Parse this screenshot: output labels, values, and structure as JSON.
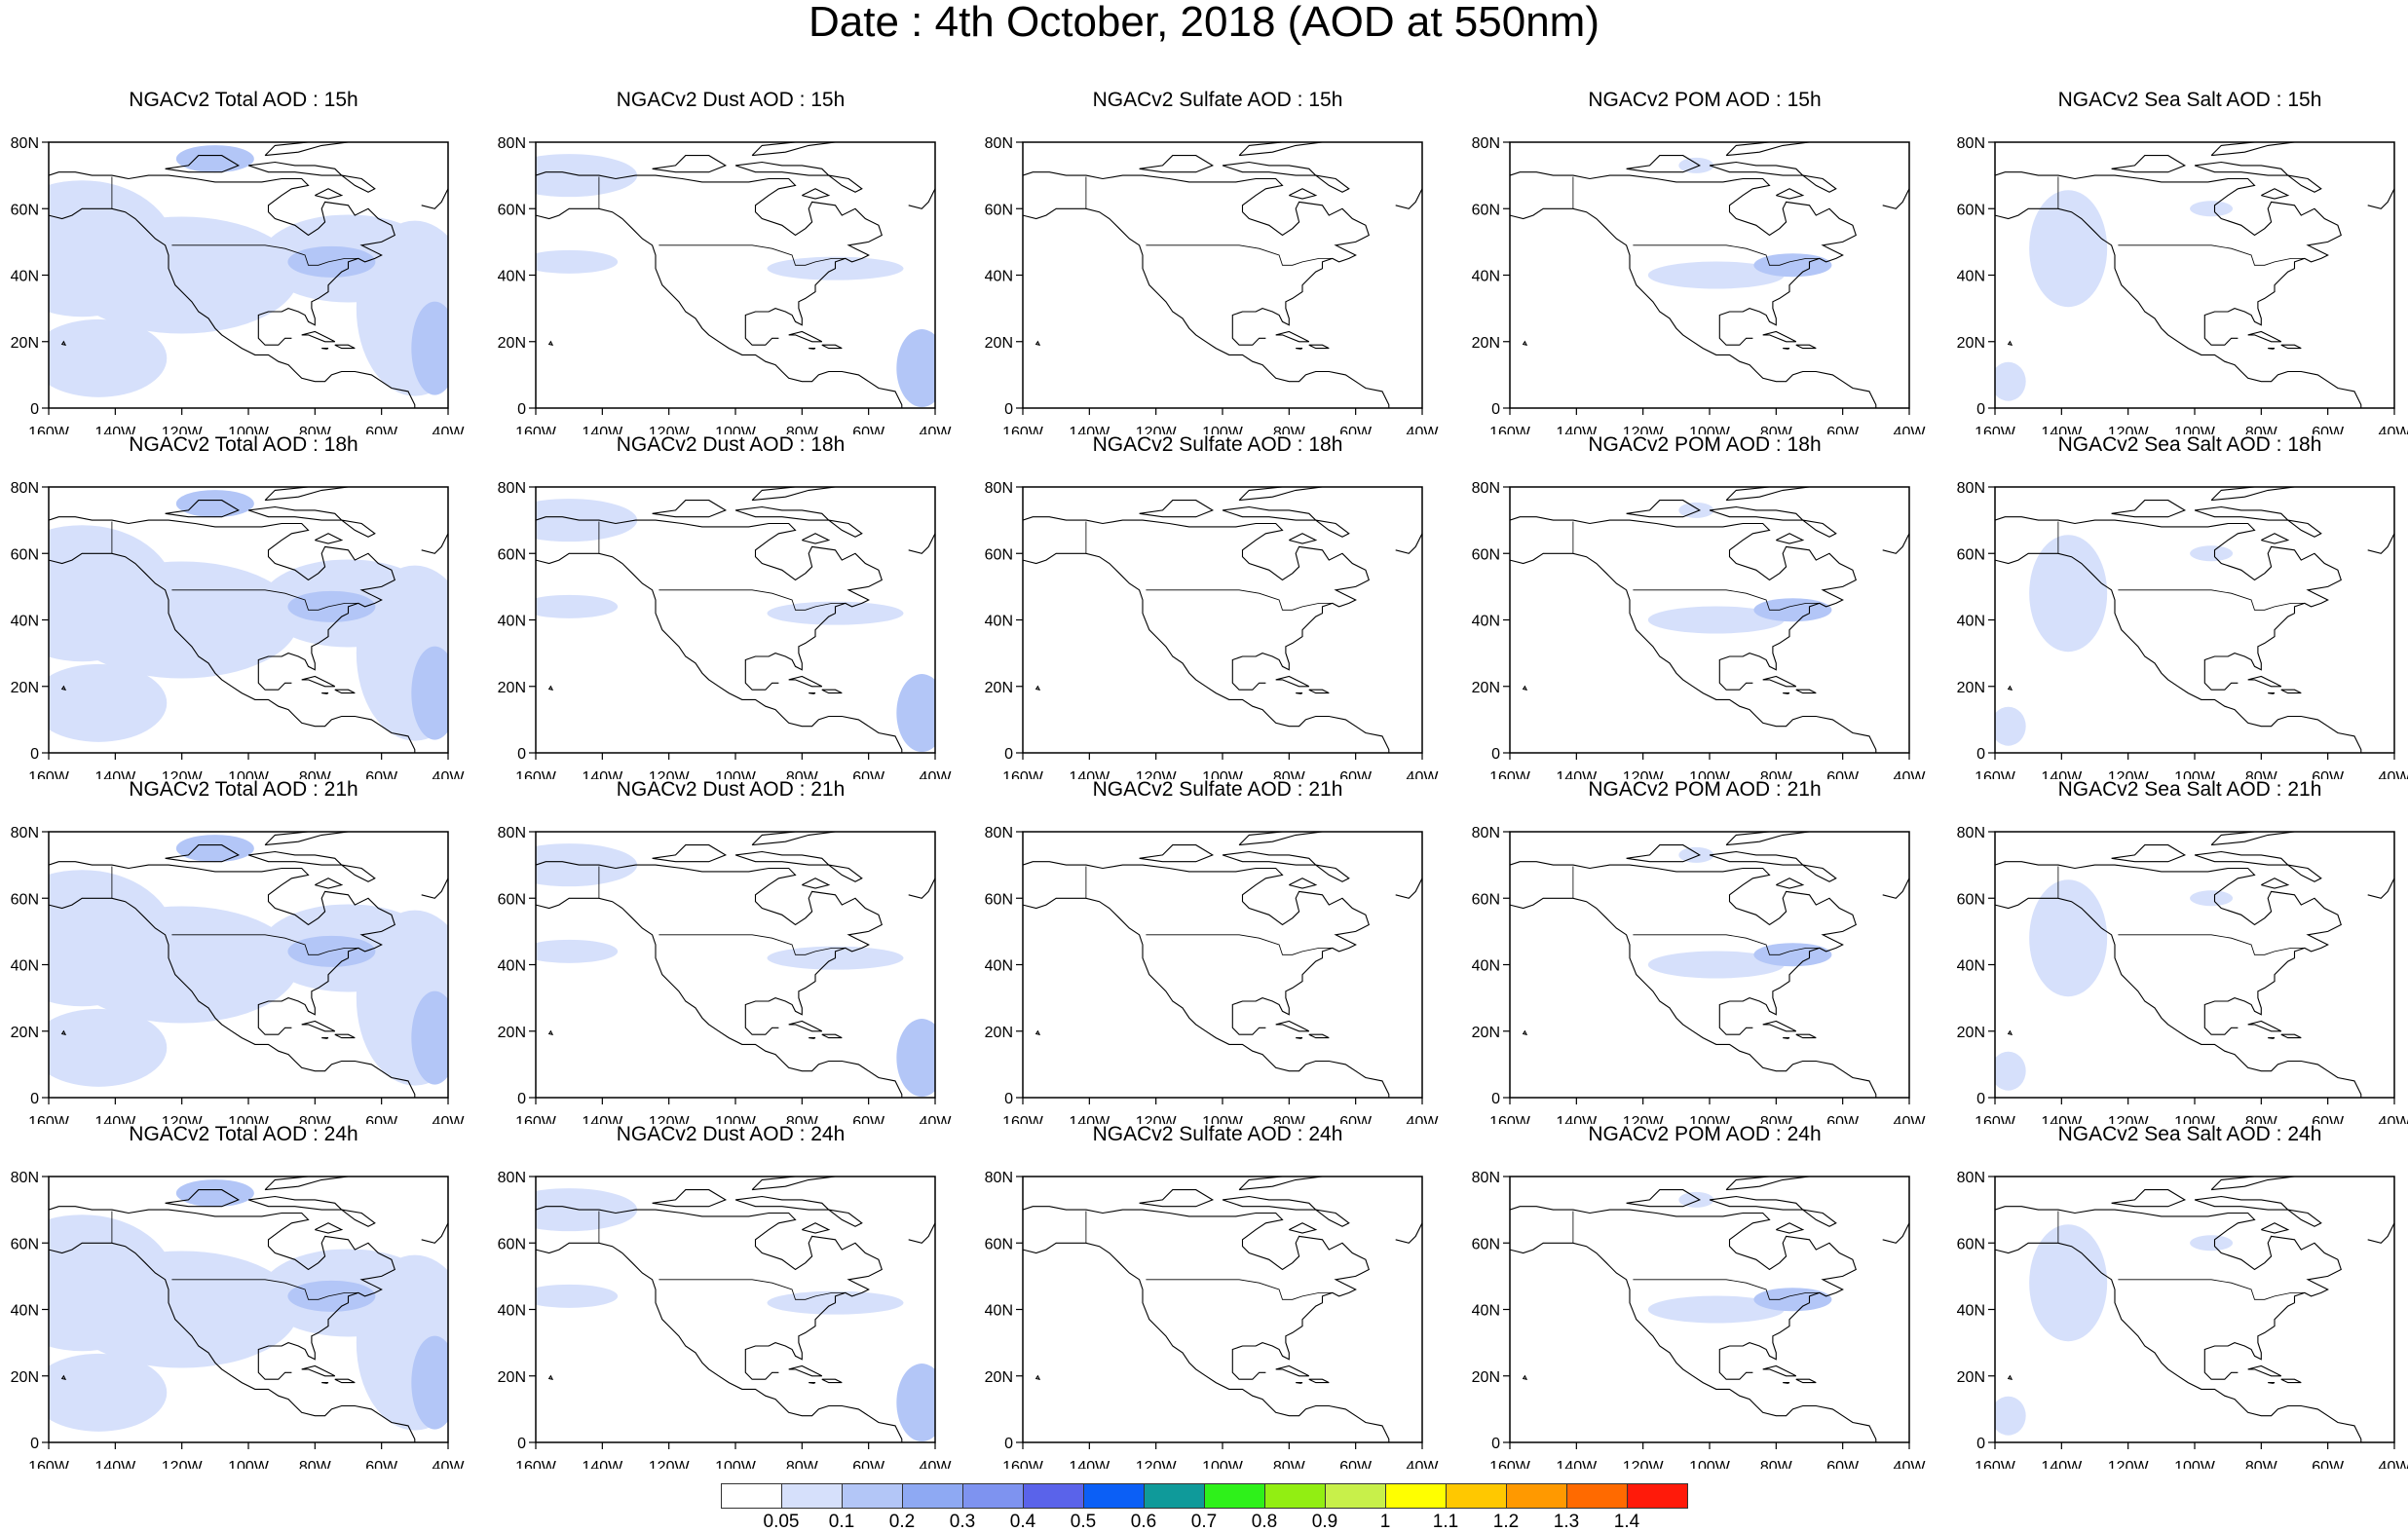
{
  "title": "Date : 4th October, 2018 (AOD at 550nm)",
  "axes": {
    "lat_ticks": [
      "80N",
      "60N",
      "40N",
      "20N",
      "0"
    ],
    "lon_ticks": [
      "160W",
      "140W",
      "120W",
      "100W",
      "80W",
      "60W",
      "40W"
    ]
  },
  "fill_color_blue": "#5b7ff0",
  "rows": [
    [
      "NGACv2 Total AOD : 15h",
      "NGACv2 Dust AOD : 15h",
      "NGACv2 Sulfate AOD : 15h",
      "NGACv2 POM AOD : 15h",
      "NGACv2 Sea Salt AOD : 15h"
    ],
    [
      "NGACv2 Total AOD : 18h",
      "NGACv2 Dust AOD : 18h",
      "NGACv2 Sulfate AOD : 18h",
      "NGACv2 POM AOD : 18h",
      "NGACv2 Sea Salt AOD : 18h"
    ],
    [
      "NGACv2 Total AOD : 21h",
      "NGACv2 Dust AOD : 21h",
      "NGACv2 Sulfate AOD : 21h",
      "NGACv2 POM AOD : 21h",
      "NGACv2 Sea Salt AOD : 21h"
    ],
    [
      "NGACv2 Total AOD : 24h",
      "NGACv2 Dust AOD : 24h",
      "NGACv2 Sulfate AOD : 24h",
      "NGACv2 POM AOD : 24h",
      "NGACv2 Sea Salt  AOD : 24h"
    ]
  ],
  "colorbar": {
    "labels": [
      "0.05",
      "0.1",
      "0.2",
      "0.3",
      "0.4",
      "0.5",
      "0.6",
      "0.7",
      "0.8",
      "0.9",
      "1",
      "1.1",
      "1.2",
      "1.3",
      "1.4"
    ],
    "colors": [
      "#ffffff",
      "#d6e0fb",
      "#b3c6f7",
      "#8ea9f3",
      "#7e93f0",
      "#5a63ea",
      "#0b5ff6",
      "#0f9a9a",
      "#2ef11a",
      "#92ee12",
      "#c8f04a",
      "#ffff00",
      "#ffc800",
      "#ff9900",
      "#ff6a00",
      "#ff1a0a"
    ]
  }
}
